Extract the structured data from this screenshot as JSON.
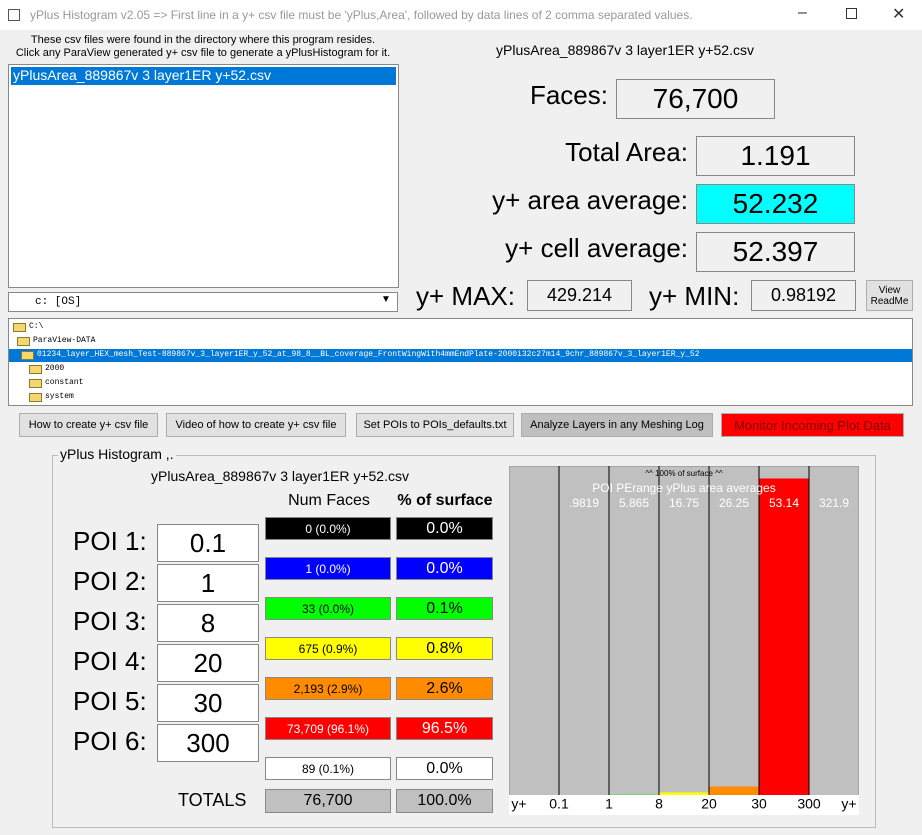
{
  "window": {
    "title": "yPlus Histogram v2.05 => First line in a y+ csv file must be 'yPlus,Area', followed by data lines of 2 comma separated values."
  },
  "file_list": {
    "instructions": [
      "These csv files were found in the directory where this program resides.",
      "Click any ParaView generated y+ csv file to generate a yPlusHistogram for it."
    ],
    "items": [
      "yPlusArea_889867v 3 layer1ER y+52.csv"
    ]
  },
  "drive": "c: [OS]",
  "folders": [
    "C:\\",
    "ParaView-DATA",
    "01234_layer_HEX_mesh_Test-889867v_3_layer1ER_y_52_at_98_8__BL_coverage_FrontWingWith4mmEndPlate-2000i32c27m14_9chr_889867v_3_layer1ER_y_52",
    "2000",
    "constant",
    "system"
  ],
  "summary": {
    "file": "yPlusArea_889867v 3 layer1ER y+52.csv",
    "faces_label": "Faces:",
    "faces": "76,700",
    "area_label": "Total Area:",
    "area": "1.191",
    "area_avg_label": "y+ area average:",
    "area_avg": "52.232",
    "cell_avg_label": "y+ cell average:",
    "cell_avg": "52.397",
    "max_label": "y+ MAX:",
    "max": "429.214",
    "min_label": "y+ MIN:",
    "min": "0.98192",
    "readme": [
      "View",
      "ReadMe"
    ]
  },
  "buttons": [
    "How to create y+ csv file",
    "Video of how to create y+ csv file",
    "Set POIs to POIs_defaults.txt",
    "Analyze Layers in any Meshing Log",
    "Monitor Incoming Plot Data"
  ],
  "histogram": {
    "group_title": "yPlus Histogram ,.",
    "file": "yPlusArea_889867v 3 layer1ER y+52.csv",
    "headers": [
      "Num Faces",
      "% of surface"
    ],
    "poi_labels": [
      "POI 1:",
      "POI 2:",
      "POI 3:",
      "POI 4:",
      "POI 5:",
      "POI 6:"
    ],
    "poi_values": [
      "0.1",
      "1",
      "8",
      "20",
      "30",
      "300"
    ],
    "num_faces": [
      "0 (0.0%)",
      "1 (0.0%)",
      "33 (0.0%)",
      "675 (0.9%)",
      "2,193 (2.9%)",
      "73,709 (96.1%)",
      "89 (0.1%)"
    ],
    "totals_label": "TOTALS",
    "total_faces": "76,700",
    "total_percent": "100.0%"
  },
  "chart_data": {
    "type": "bar",
    "title": "^^ 100% of surface ^^",
    "subtitle": "POI PErange yPlus area averages",
    "category_labels": [
      null,
      ".9819",
      "5.865",
      "16.75",
      "26.25",
      "53.14",
      "321.9"
    ],
    "edge_labels": [
      "y+",
      "0.1",
      "1",
      "8",
      "20",
      "30",
      "300",
      "y+"
    ],
    "values": [
      0.0,
      0.0,
      0.1,
      0.8,
      2.6,
      96.5,
      0.0
    ],
    "value_labels": [
      "0.0%",
      "0.0%",
      "0.1%",
      "0.8%",
      "2.6%",
      "96.5%",
      "0.0%"
    ],
    "colors": [
      "#000000",
      "#0000ff",
      "#00ff00",
      "#ffff00",
      "#ff8c00",
      "#ff0000",
      "#ffffff"
    ],
    "ylim": [
      0,
      100
    ]
  }
}
